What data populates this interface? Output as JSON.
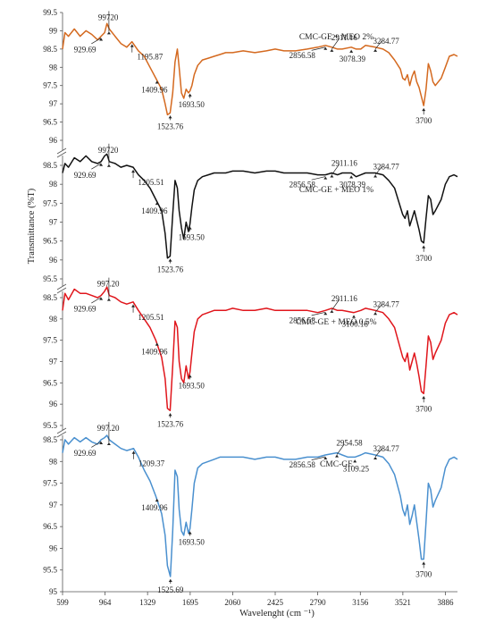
{
  "chart_data": {
    "type": "line",
    "xlabel": "Wavelenght (cm ⁻¹)",
    "ylabel": "Transmittance (%T)",
    "x_ticks": [
      599,
      964,
      1329,
      1695,
      2060,
      2425,
      2790,
      3156,
      3521,
      3886
    ],
    "xlim": [
      599,
      3990
    ],
    "grid": false,
    "legend": "none",
    "panels": [
      {
        "title": "CMC-GE + MEO 2%",
        "color": "#d4691f",
        "ylim": [
          96,
          99.5
        ],
        "y_ticks": [
          "96",
          "96.5",
          "97",
          "97.5",
          "98",
          "98.5",
          "99",
          "99.5"
        ],
        "x": [
          599,
          620,
          650,
          700,
          750,
          800,
          850,
          900,
          930,
          960,
          980,
          1000,
          1050,
          1100,
          1150,
          1195,
          1250,
          1300,
          1350,
          1400,
          1450,
          1480,
          1500,
          1523,
          1545,
          1565,
          1585,
          1600,
          1620,
          1640,
          1660,
          1680,
          1693,
          1710,
          1730,
          1760,
          1800,
          1850,
          1900,
          1950,
          2000,
          2060,
          2150,
          2250,
          2350,
          2425,
          2500,
          2600,
          2700,
          2790,
          2856,
          2911,
          2960,
          3000,
          3078,
          3120,
          3160,
          3200,
          3284,
          3350,
          3400,
          3450,
          3500,
          3520,
          3540,
          3560,
          3580,
          3600,
          3620,
          3640,
          3660,
          3680,
          3700,
          3720,
          3740,
          3760,
          3780,
          3800,
          3850,
          3886,
          3920,
          3960,
          3990
        ],
        "y": [
          98.5,
          98.95,
          98.85,
          99.05,
          98.85,
          99.0,
          98.9,
          98.75,
          98.85,
          98.95,
          99.2,
          99.05,
          98.85,
          98.65,
          98.55,
          98.7,
          98.45,
          98.3,
          98.0,
          97.7,
          97.4,
          97.0,
          96.7,
          96.75,
          97.3,
          98.15,
          98.5,
          98.0,
          97.3,
          97.15,
          97.4,
          97.3,
          97.35,
          97.5,
          97.8,
          98.05,
          98.2,
          98.25,
          98.3,
          98.35,
          98.4,
          98.4,
          98.45,
          98.4,
          98.45,
          98.5,
          98.45,
          98.45,
          98.5,
          98.55,
          98.6,
          98.55,
          98.5,
          98.5,
          98.55,
          98.5,
          98.5,
          98.6,
          98.55,
          98.5,
          98.4,
          98.2,
          97.95,
          97.7,
          97.65,
          97.8,
          97.5,
          97.75,
          97.9,
          97.6,
          97.45,
          97.2,
          96.95,
          97.4,
          98.1,
          97.9,
          97.6,
          97.5,
          97.7,
          98.0,
          98.3,
          98.35,
          98.3
        ],
        "annotations": [
          "929.69",
          "99720",
          "1195.87",
          "1409.96",
          "1523.76",
          "1693.50",
          "2856.58",
          "2911.16",
          "3078.39",
          "3284.77",
          "3700"
        ]
      },
      {
        "title": "CMC-GE + MEO 1%",
        "color": "#111111",
        "ylim": [
          95.5,
          98.5
        ],
        "y_ticks": [
          "95.5",
          "96",
          "96.5",
          "97",
          "97.5",
          "98",
          "98.5"
        ],
        "x": [
          599,
          620,
          650,
          700,
          750,
          800,
          850,
          900,
          930,
          960,
          980,
          1000,
          1050,
          1100,
          1150,
          1205,
          1250,
          1300,
          1350,
          1400,
          1450,
          1480,
          1500,
          1523,
          1545,
          1565,
          1585,
          1600,
          1620,
          1640,
          1660,
          1680,
          1693,
          1710,
          1730,
          1760,
          1800,
          1850,
          1900,
          1950,
          2000,
          2060,
          2150,
          2250,
          2350,
          2425,
          2500,
          2600,
          2700,
          2790,
          2856,
          2911,
          2960,
          3000,
          3078,
          3120,
          3160,
          3200,
          3284,
          3350,
          3400,
          3450,
          3500,
          3520,
          3540,
          3560,
          3580,
          3600,
          3620,
          3640,
          3660,
          3680,
          3700,
          3720,
          3740,
          3760,
          3780,
          3800,
          3850,
          3886,
          3920,
          3960,
          3990
        ],
        "y": [
          98.3,
          98.55,
          98.45,
          98.7,
          98.6,
          98.75,
          98.6,
          98.55,
          98.6,
          98.75,
          98.8,
          98.6,
          98.55,
          98.45,
          98.5,
          98.45,
          98.25,
          98.1,
          97.9,
          97.6,
          97.3,
          96.7,
          96.05,
          96.1,
          97.2,
          98.1,
          97.9,
          97.3,
          96.85,
          96.55,
          97.0,
          96.75,
          96.95,
          97.4,
          97.85,
          98.1,
          98.2,
          98.25,
          98.3,
          98.3,
          98.3,
          98.35,
          98.35,
          98.3,
          98.35,
          98.35,
          98.3,
          98.3,
          98.3,
          98.25,
          98.25,
          98.3,
          98.25,
          98.3,
          98.3,
          98.2,
          98.25,
          98.3,
          98.3,
          98.25,
          98.1,
          97.9,
          97.4,
          97.2,
          97.1,
          97.3,
          96.9,
          97.1,
          97.3,
          97.05,
          96.8,
          96.5,
          96.45,
          97.1,
          97.7,
          97.6,
          97.2,
          97.3,
          97.6,
          98.0,
          98.2,
          98.25,
          98.2
        ],
        "annotations": [
          "929.69",
          "99720",
          "1205.51",
          "1409.96",
          "1523.76",
          "1693.50",
          "2856.58",
          "2911.16",
          "3078.39",
          "3284.77",
          "3700"
        ]
      },
      {
        "title": "CMC-GE + MEO 0.5%",
        "color": "#e0161c",
        "ylim": [
          95.5,
          98.5
        ],
        "y_ticks": [
          "95.5",
          "96",
          "96.5",
          "97",
          "97.5",
          "98",
          "98.5"
        ],
        "x": [
          599,
          620,
          650,
          700,
          750,
          800,
          850,
          900,
          930,
          960,
          980,
          1000,
          1050,
          1100,
          1150,
          1205,
          1250,
          1300,
          1350,
          1400,
          1450,
          1480,
          1500,
          1523,
          1545,
          1565,
          1585,
          1600,
          1620,
          1640,
          1660,
          1680,
          1693,
          1710,
          1730,
          1760,
          1800,
          1850,
          1900,
          1950,
          2000,
          2060,
          2150,
          2250,
          2350,
          2425,
          2500,
          2600,
          2700,
          2790,
          2856,
          2911,
          2960,
          3000,
          3100,
          3160,
          3200,
          3284,
          3350,
          3400,
          3450,
          3500,
          3520,
          3540,
          3560,
          3580,
          3600,
          3620,
          3640,
          3660,
          3680,
          3700,
          3720,
          3740,
          3760,
          3780,
          3800,
          3850,
          3886,
          3920,
          3960,
          3990
        ],
        "y": [
          98.2,
          98.6,
          98.45,
          98.7,
          98.6,
          98.6,
          98.55,
          98.5,
          98.55,
          98.65,
          98.75,
          98.55,
          98.5,
          98.4,
          98.35,
          98.4,
          98.2,
          98.0,
          97.8,
          97.5,
          97.1,
          96.6,
          95.9,
          95.85,
          96.9,
          97.95,
          97.8,
          97.0,
          96.6,
          96.5,
          96.9,
          96.6,
          96.75,
          97.2,
          97.7,
          98.0,
          98.1,
          98.15,
          98.2,
          98.2,
          98.2,
          98.25,
          98.2,
          98.2,
          98.25,
          98.2,
          98.2,
          98.2,
          98.2,
          98.15,
          98.2,
          98.25,
          98.2,
          98.2,
          98.15,
          98.2,
          98.25,
          98.2,
          98.15,
          98.0,
          97.8,
          97.3,
          97.1,
          97.0,
          97.2,
          96.8,
          97.0,
          97.2,
          96.95,
          96.65,
          96.3,
          96.25,
          96.9,
          97.6,
          97.45,
          97.05,
          97.2,
          97.5,
          97.9,
          98.1,
          98.15,
          98.1
        ],
        "annotations": [
          "929.69",
          "997.20",
          "1205.51",
          "1409.96",
          "1523.76",
          "1693.50",
          "2856.58",
          "2911.16",
          "3100.18",
          "3284.77",
          "3700"
        ]
      },
      {
        "title": "CMC-GE",
        "color": "#4a90cf",
        "ylim": [
          95,
          98.5
        ],
        "y_ticks": [
          "95",
          "95.5",
          "96",
          "96.5",
          "97",
          "97.5",
          "98",
          "98.5"
        ],
        "x": [
          599,
          620,
          650,
          700,
          750,
          800,
          850,
          900,
          930,
          960,
          980,
          1000,
          1050,
          1100,
          1150,
          1209,
          1250,
          1300,
          1350,
          1400,
          1450,
          1480,
          1500,
          1525,
          1545,
          1565,
          1585,
          1600,
          1620,
          1640,
          1660,
          1680,
          1693,
          1710,
          1730,
          1760,
          1800,
          1850,
          1900,
          1950,
          2000,
          2060,
          2150,
          2250,
          2350,
          2425,
          2500,
          2600,
          2700,
          2790,
          2856,
          2954,
          3000,
          3050,
          3109,
          3160,
          3200,
          3284,
          3350,
          3400,
          3450,
          3500,
          3520,
          3540,
          3560,
          3580,
          3600,
          3620,
          3640,
          3660,
          3680,
          3700,
          3720,
          3740,
          3760,
          3780,
          3800,
          3850,
          3886,
          3920,
          3960,
          3990
        ],
        "y": [
          98.2,
          98.5,
          98.4,
          98.55,
          98.45,
          98.55,
          98.45,
          98.4,
          98.5,
          98.55,
          98.6,
          98.5,
          98.4,
          98.3,
          98.25,
          98.3,
          98.1,
          97.8,
          97.55,
          97.2,
          96.8,
          96.3,
          95.6,
          95.35,
          96.4,
          97.8,
          97.65,
          96.9,
          96.4,
          96.3,
          96.6,
          96.35,
          96.45,
          96.9,
          97.5,
          97.85,
          97.95,
          98.0,
          98.05,
          98.1,
          98.1,
          98.1,
          98.1,
          98.05,
          98.1,
          98.1,
          98.05,
          98.05,
          98.1,
          98.1,
          98.15,
          98.2,
          98.15,
          98.1,
          98.1,
          98.15,
          98.2,
          98.15,
          98.1,
          97.95,
          97.7,
          97.2,
          96.9,
          96.75,
          97.0,
          96.55,
          96.75,
          97.0,
          96.6,
          96.2,
          95.75,
          95.75,
          96.6,
          97.5,
          97.35,
          96.95,
          97.1,
          97.4,
          97.85,
          98.05,
          98.1,
          98.05
        ],
        "annotations": [
          "929.69",
          "997.20",
          "1209.37",
          "1409.96",
          "1525.69",
          "1693.50",
          "2856.58",
          "2954.58",
          "3109.25",
          "3284.77",
          "3700"
        ]
      }
    ]
  }
}
